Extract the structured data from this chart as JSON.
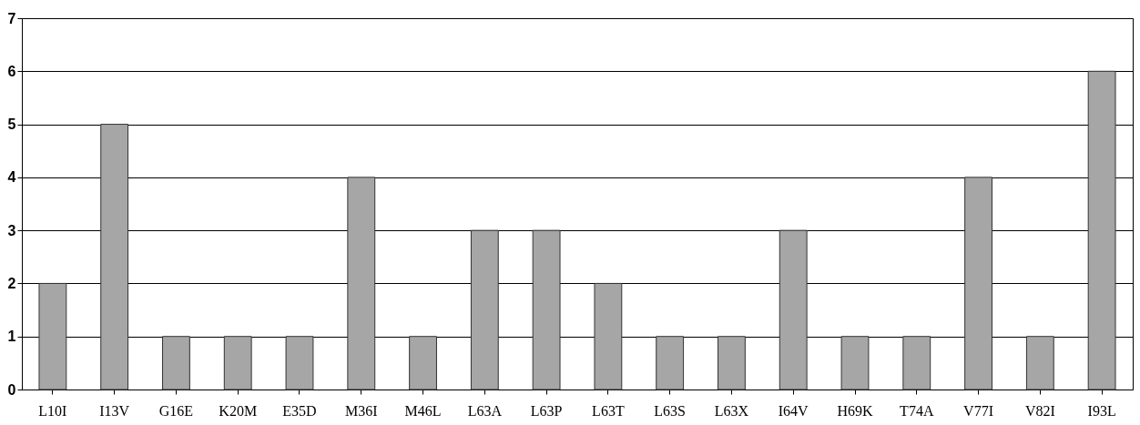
{
  "chart_data": {
    "type": "bar",
    "categories": [
      "L10I",
      "I13V",
      "G16E",
      "K20M",
      "E35D",
      "M36I",
      "M46L",
      "L63A",
      "L63P",
      "L63T",
      "L63S",
      "L63X",
      "I64V",
      "H69K",
      "T74A",
      "V77I",
      "V82I",
      "I93L"
    ],
    "values": [
      2,
      5,
      1,
      1,
      1,
      4,
      1,
      3,
      3,
      2,
      1,
      1,
      3,
      1,
      1,
      4,
      1,
      6
    ],
    "color": "#a6a6a6",
    "ylim": [
      0,
      7
    ],
    "yticks": [
      0,
      1,
      2,
      3,
      4,
      5,
      6,
      7
    ],
    "grid": "y"
  }
}
